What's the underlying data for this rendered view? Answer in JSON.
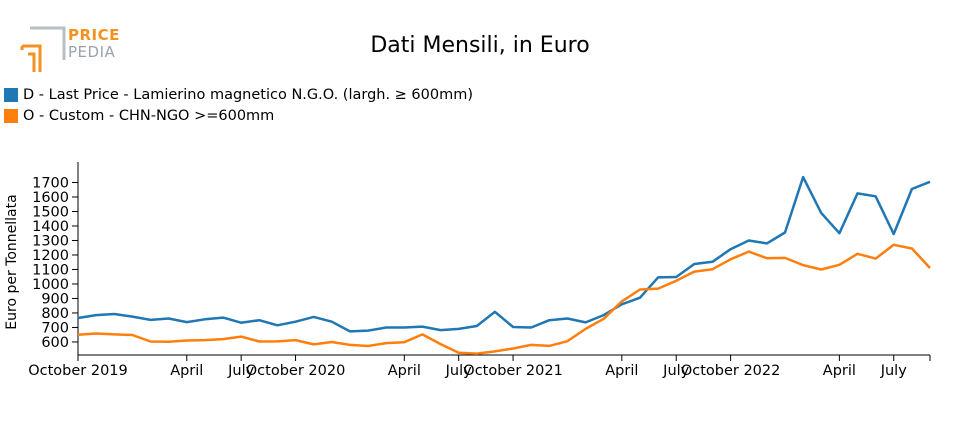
{
  "logo": {
    "line1": "PRICE",
    "line2": "PEDIA"
  },
  "chart_data": {
    "type": "line",
    "title": "Dati Mensili, in Euro",
    "xlabel": "",
    "ylabel": "Euro per Tonnellata",
    "ylim": [
      510,
      1800
    ],
    "yticks": [
      600,
      700,
      800,
      900,
      1000,
      1100,
      1200,
      1300,
      1400,
      1500,
      1600,
      1700
    ],
    "xticks": [
      {
        "label": "October 2019",
        "month": "2019-10"
      },
      {
        "label": "April",
        "month": "2020-04"
      },
      {
        "label": "July",
        "month": "2020-07"
      },
      {
        "label": "October 2020",
        "month": "2020-10"
      },
      {
        "label": "April",
        "month": "2021-04"
      },
      {
        "label": "July",
        "month": "2021-07"
      },
      {
        "label": "October 2021",
        "month": "2021-10"
      },
      {
        "label": "April",
        "month": "2022-04"
      },
      {
        "label": "July",
        "month": "2022-07"
      },
      {
        "label": "October 2022",
        "month": "2022-10"
      },
      {
        "label": "April",
        "month": "2023-04"
      },
      {
        "label": "July",
        "month": "2023-07"
      }
    ],
    "x_start": "2019-10",
    "x_end": "2023-09",
    "legend_position": "top-left",
    "grid": false,
    "series": [
      {
        "name": "D - Last Price - Lamierino magnetico N.G.O. (largh. ≥ 600mm)",
        "color": "#1f77b4",
        "values": [
          765,
          785,
          793,
          775,
          752,
          762,
          737,
          756,
          768,
          733,
          750,
          715,
          740,
          773,
          740,
          673,
          678,
          700,
          700,
          706,
          682,
          690,
          710,
          808,
          703,
          700,
          750,
          762,
          735,
          785,
          860,
          905,
          1045,
          1048,
          1138,
          1153,
          1240,
          1300,
          1280,
          1355,
          1737,
          1490,
          1350,
          1625,
          1605,
          1345,
          1655,
          1705
        ]
      },
      {
        "name": "O - Custom - CHN-NGO >=600mm",
        "color": "#ff7f0e",
        "values": [
          650,
          658,
          652,
          648,
          603,
          602,
          610,
          613,
          620,
          637,
          603,
          604,
          613,
          583,
          600,
          580,
          572,
          592,
          598,
          652,
          585,
          525,
          520,
          535,
          555,
          580,
          573,
          605,
          690,
          760,
          880,
          962,
          968,
          1022,
          1085,
          1102,
          1170,
          1223,
          1178,
          1180,
          1130,
          1100,
          1132,
          1208,
          1175,
          1270,
          1245,
          1110
        ]
      }
    ]
  }
}
